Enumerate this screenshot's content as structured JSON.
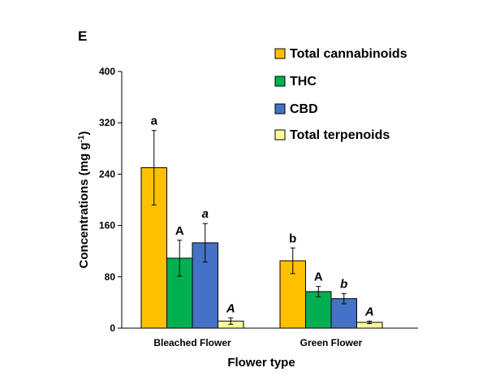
{
  "panel_label": "E",
  "chart_data": {
    "type": "bar",
    "categories": [
      "Bleached Flower",
      "Green Flower"
    ],
    "xlabel": "Flower type",
    "ylabel": "Concentrations (mg g",
    "ylabel_sup": "-1",
    "ylabel_close": ")",
    "ylim": [
      0,
      400
    ],
    "yticks": [
      "0",
      "80",
      "160",
      "240",
      "320",
      "400"
    ],
    "grid": false,
    "legend_position": "top-right",
    "series": [
      {
        "name": "Total cannabinoids",
        "color": "#FFC000",
        "values": [
          250,
          105
        ],
        "errors": [
          58,
          20
        ],
        "sig": [
          "a",
          "b"
        ],
        "sig_italic": false
      },
      {
        "name": "THC",
        "color": "#00B050",
        "values": [
          109,
          57
        ],
        "errors": [
          28,
          8
        ],
        "sig": [
          "A",
          "A"
        ],
        "sig_italic": false
      },
      {
        "name": "CBD",
        "color": "#4472C4",
        "values": [
          133,
          46
        ],
        "errors": [
          30,
          8
        ],
        "sig": [
          "a",
          "b"
        ],
        "sig_italic": true
      },
      {
        "name": "Total terpenoids",
        "color": "#FFFF99",
        "values": [
          11,
          9
        ],
        "errors": [
          5,
          2
        ],
        "sig": [
          "A",
          "A"
        ],
        "sig_italic": true
      }
    ]
  }
}
